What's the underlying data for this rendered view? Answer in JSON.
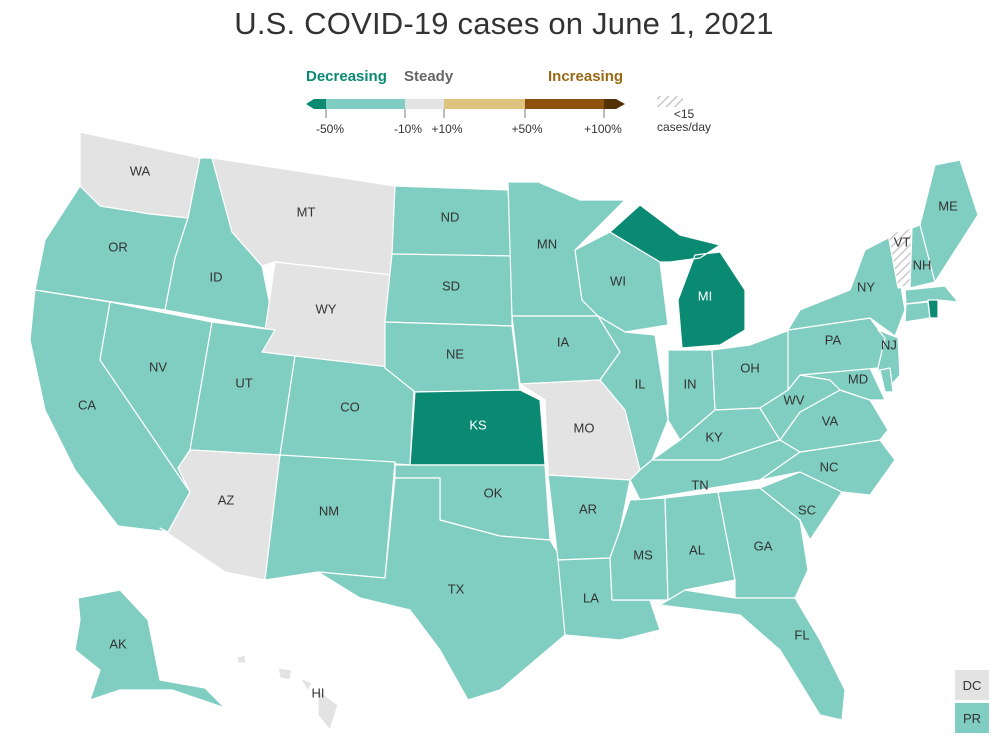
{
  "title": "U.S. COVID-19 cases on June 1, 2021",
  "legend": {
    "decreasing_label": "Decreasing",
    "steady_label": "Steady",
    "increasing_label": "Increasing",
    "ticks": [
      "-50%",
      "-10%",
      "+10%",
      "+50%",
      "+100%"
    ],
    "lt15_line1": "<15",
    "lt15_line2": "cases/day",
    "colors": {
      "strong_decrease": "#0a8a73",
      "decrease": "#80cdc1",
      "steady": "#e3e3e3",
      "increase": "#dfc27d",
      "strong_increase": "#8c510a",
      "very_strong_increase": "#543005",
      "decreasing_text": "#0a8a73",
      "increasing_text": "#9a6a16"
    }
  },
  "states": {
    "WA": "WA",
    "OR": "OR",
    "CA": "CA",
    "ID": "ID",
    "NV": "NV",
    "MT": "MT",
    "WY": "WY",
    "UT": "UT",
    "AZ": "AZ",
    "CO": "CO",
    "NM": "NM",
    "ND": "ND",
    "SD": "SD",
    "NE": "NE",
    "KS": "KS",
    "OK": "OK",
    "TX": "TX",
    "MN": "MN",
    "IA": "IA",
    "MO": "MO",
    "AR": "AR",
    "LA": "LA",
    "WI": "WI",
    "IL": "IL",
    "MI": "MI",
    "IN": "IN",
    "OH": "OH",
    "KY": "KY",
    "TN": "TN",
    "MS": "MS",
    "AL": "AL",
    "GA": "GA",
    "FL": "FL",
    "SC": "SC",
    "NC": "NC",
    "VA": "VA",
    "WV": "WV",
    "MD": "MD",
    "PA": "PA",
    "NJ": "NJ",
    "NY": "NY",
    "VT": "VT",
    "NH": "NH",
    "ME": "ME",
    "AK": "AK",
    "HI": "HI"
  },
  "state_categories": {
    "steady": [
      "WA",
      "MT",
      "WY",
      "AZ",
      "MO",
      "DC"
    ],
    "strong_decrease": [
      "KS",
      "MI",
      "RI"
    ],
    "lt15": [
      "VT"
    ],
    "decrease": [
      "all other states",
      "PR"
    ]
  },
  "territories": {
    "dc": "DC",
    "pr": "PR"
  }
}
